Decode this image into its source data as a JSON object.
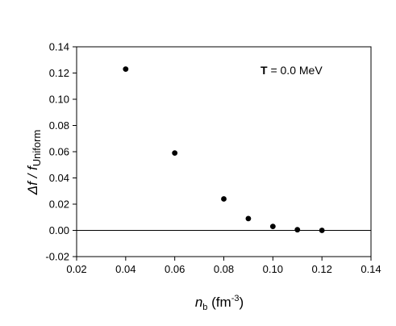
{
  "chart_data": {
    "type": "scatter",
    "x": [
      0.04,
      0.06,
      0.08,
      0.09,
      0.1,
      0.11,
      0.12
    ],
    "y": [
      0.123,
      0.059,
      0.024,
      0.009,
      0.003,
      0.0005,
      0.0
    ],
    "xlim": [
      0.02,
      0.14
    ],
    "ylim": [
      -0.02,
      0.14
    ],
    "xticks": [
      "0.02",
      "0.04",
      "0.06",
      "0.08",
      "0.10",
      "0.12",
      "0.14"
    ],
    "yticks": [
      "-0.02",
      "0.00",
      "0.02",
      "0.04",
      "0.06",
      "0.08",
      "0.10",
      "0.12",
      "0.14"
    ],
    "xlabel": {
      "main": "n",
      "sub": "b",
      "unit_open": " (fm",
      "unit_sup": "-3",
      "unit_close": ")"
    },
    "ylabel": {
      "main": "Δf / f",
      "sub": "Uniform"
    },
    "annotation": {
      "bold": "T",
      "rest": " = 0.0 MeV"
    },
    "reference_line_y": 0,
    "grid": false,
    "marker_color": "#000000"
  }
}
